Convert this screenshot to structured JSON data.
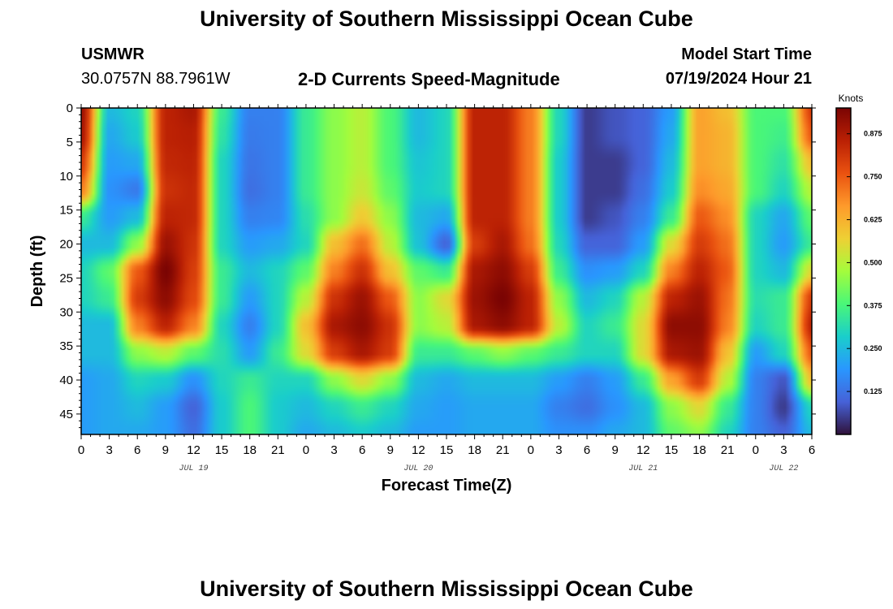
{
  "header": {
    "title": "University of Southern Mississippi Ocean Cube",
    "station_id": "USMWR",
    "station_coords": "30.0757N  88.7961W",
    "chart_title": "2-D Currents Speed-Magnitude",
    "model_start_label": "Model Start Time",
    "model_start_value": "07/19/2024 Hour 21"
  },
  "footer": {
    "title": "University of Southern Mississippi Ocean Cube"
  },
  "chart_data": {
    "type": "heatmap",
    "title": "2-D Currents Speed-Magnitude",
    "xlabel": "Forecast Time(Z)",
    "ylabel": "Depth (ft)",
    "x_unit": "hours since 07/19/2024 00Z",
    "xlim": [
      0,
      78
    ],
    "ylim": [
      0,
      48
    ],
    "y_inverted": true,
    "x_tick_labels": [
      "0",
      "3",
      "6",
      "9",
      "12",
      "15",
      "18",
      "21",
      "0",
      "3",
      "6",
      "9",
      "12",
      "15",
      "18",
      "21",
      "0",
      "3",
      "6",
      "9",
      "12",
      "15",
      "18",
      "21",
      "0",
      "3",
      "6"
    ],
    "y_ticks": [
      0,
      5,
      10,
      15,
      20,
      25,
      30,
      35,
      40,
      45
    ],
    "date_labels": [
      {
        "label": "JUL 19",
        "hour": 12
      },
      {
        "label": "JUL 20",
        "hour": 36
      },
      {
        "label": "JUL 21",
        "hour": 60
      },
      {
        "label": "JUL 22",
        "hour": 75
      }
    ],
    "colorbar": {
      "unit": "Knots",
      "min": 0.0,
      "max": 0.95,
      "ticks": [
        "0.875",
        "0.750",
        "0.625",
        "0.500",
        "0.375",
        "0.250",
        "0.125"
      ],
      "colormap": "turbo"
    },
    "x_hours": [
      0,
      3,
      6,
      9,
      12,
      15,
      18,
      21,
      24,
      27,
      30,
      33,
      36,
      39,
      42,
      45,
      48,
      51,
      54,
      57,
      60,
      63,
      66,
      69,
      72,
      75,
      78
    ],
    "depths_ft": [
      0,
      4,
      8,
      12,
      16,
      20,
      24,
      28,
      32,
      36,
      40,
      44,
      48
    ],
    "speed_knots": [
      [
        0.9,
        0.25,
        0.3,
        0.85,
        0.88,
        0.35,
        0.15,
        0.15,
        0.35,
        0.45,
        0.5,
        0.38,
        0.25,
        0.3,
        0.85,
        0.85,
        0.7,
        0.3,
        0.05,
        0.08,
        0.1,
        0.2,
        0.65,
        0.6,
        0.38,
        0.38,
        0.8
      ],
      [
        0.88,
        0.22,
        0.28,
        0.85,
        0.86,
        0.33,
        0.14,
        0.15,
        0.35,
        0.45,
        0.5,
        0.38,
        0.25,
        0.3,
        0.85,
        0.85,
        0.7,
        0.3,
        0.05,
        0.08,
        0.1,
        0.22,
        0.65,
        0.62,
        0.38,
        0.36,
        0.75
      ],
      [
        0.8,
        0.2,
        0.22,
        0.84,
        0.85,
        0.3,
        0.13,
        0.15,
        0.35,
        0.45,
        0.5,
        0.38,
        0.27,
        0.3,
        0.85,
        0.85,
        0.7,
        0.28,
        0.05,
        0.05,
        0.1,
        0.25,
        0.65,
        0.62,
        0.38,
        0.33,
        0.6
      ],
      [
        0.7,
        0.18,
        0.14,
        0.82,
        0.84,
        0.3,
        0.12,
        0.15,
        0.35,
        0.45,
        0.52,
        0.4,
        0.28,
        0.3,
        0.85,
        0.85,
        0.7,
        0.28,
        0.05,
        0.05,
        0.12,
        0.28,
        0.68,
        0.64,
        0.38,
        0.3,
        0.5
      ],
      [
        0.35,
        0.2,
        0.25,
        0.85,
        0.84,
        0.3,
        0.15,
        0.16,
        0.32,
        0.45,
        0.58,
        0.45,
        0.25,
        0.22,
        0.85,
        0.85,
        0.7,
        0.28,
        0.05,
        0.08,
        0.15,
        0.35,
        0.75,
        0.68,
        0.3,
        0.22,
        0.4
      ],
      [
        0.25,
        0.25,
        0.45,
        0.9,
        0.82,
        0.3,
        0.2,
        0.22,
        0.3,
        0.6,
        0.72,
        0.5,
        0.26,
        0.1,
        0.8,
        0.88,
        0.72,
        0.3,
        0.1,
        0.1,
        0.2,
        0.55,
        0.8,
        0.72,
        0.3,
        0.2,
        0.35
      ],
      [
        0.3,
        0.4,
        0.75,
        0.95,
        0.8,
        0.35,
        0.25,
        0.3,
        0.4,
        0.7,
        0.82,
        0.6,
        0.4,
        0.35,
        0.88,
        0.92,
        0.8,
        0.35,
        0.18,
        0.2,
        0.3,
        0.7,
        0.85,
        0.75,
        0.3,
        0.25,
        0.55
      ],
      [
        0.3,
        0.35,
        0.8,
        0.92,
        0.78,
        0.35,
        0.2,
        0.3,
        0.5,
        0.82,
        0.9,
        0.75,
        0.45,
        0.55,
        0.9,
        0.95,
        0.85,
        0.45,
        0.25,
        0.3,
        0.5,
        0.85,
        0.9,
        0.72,
        0.32,
        0.35,
        0.8
      ],
      [
        0.25,
        0.25,
        0.7,
        0.85,
        0.7,
        0.3,
        0.15,
        0.3,
        0.6,
        0.88,
        0.92,
        0.82,
        0.45,
        0.5,
        0.88,
        0.92,
        0.85,
        0.5,
        0.3,
        0.35,
        0.55,
        0.92,
        0.92,
        0.7,
        0.3,
        0.35,
        0.85
      ],
      [
        0.25,
        0.25,
        0.45,
        0.5,
        0.4,
        0.32,
        0.2,
        0.35,
        0.55,
        0.8,
        0.88,
        0.8,
        0.35,
        0.35,
        0.4,
        0.45,
        0.4,
        0.35,
        0.3,
        0.3,
        0.55,
        0.88,
        0.9,
        0.6,
        0.2,
        0.3,
        0.75
      ],
      [
        0.2,
        0.22,
        0.3,
        0.28,
        0.18,
        0.3,
        0.35,
        0.3,
        0.3,
        0.45,
        0.55,
        0.45,
        0.25,
        0.22,
        0.25,
        0.25,
        0.25,
        0.2,
        0.15,
        0.2,
        0.35,
        0.65,
        0.8,
        0.5,
        0.15,
        0.08,
        0.6
      ],
      [
        0.2,
        0.22,
        0.25,
        0.2,
        0.1,
        0.28,
        0.38,
        0.28,
        0.25,
        0.3,
        0.35,
        0.3,
        0.22,
        0.2,
        0.22,
        0.22,
        0.22,
        0.15,
        0.12,
        0.18,
        0.25,
        0.45,
        0.55,
        0.35,
        0.15,
        0.05,
        0.3
      ],
      [
        0.2,
        0.22,
        0.22,
        0.2,
        0.12,
        0.28,
        0.38,
        0.28,
        0.22,
        0.25,
        0.28,
        0.25,
        0.2,
        0.2,
        0.22,
        0.22,
        0.22,
        0.18,
        0.18,
        0.22,
        0.25,
        0.4,
        0.45,
        0.3,
        0.15,
        0.1,
        0.25
      ]
    ]
  }
}
